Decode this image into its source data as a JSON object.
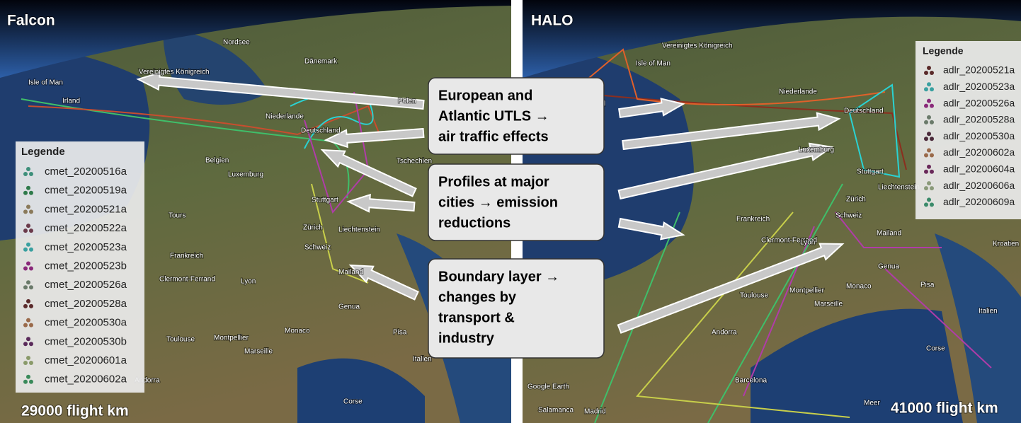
{
  "panels": [
    {
      "title": "Falcon",
      "distance": "29000 flight km",
      "legend": {
        "title": "Legende",
        "items": [
          "cmet_20200516a",
          "cmet_20200519a",
          "cmet_20200521a",
          "cmet_20200522a",
          "cmet_20200523a",
          "cmet_20200523b",
          "cmet_20200526a",
          "cmet_20200528a",
          "cmet_20200530a",
          "cmet_20200530b",
          "cmet_20200601a",
          "cmet_20200602a"
        ]
      },
      "places": [
        "Nordsee",
        "Dänemark",
        "Isle of Man",
        "Vereinigtes Königreich",
        "Irland",
        "Polen",
        "Niederlande",
        "Deutschland",
        "Belgien",
        "Luxemburg",
        "Tschechien",
        "Stuttgart",
        "Tours",
        "Zürich",
        "Liechtenstein",
        "Schweiz",
        "Frankreich",
        "Clermont-Ferrand",
        "Lyon",
        "Mailand",
        "Genua",
        "Monaco",
        "Toulouse",
        "Montpellier",
        "Marseille",
        "Pisa",
        "Italien",
        "Andorra",
        "Corse"
      ]
    },
    {
      "title": "HALO",
      "distance": "41000 flight km",
      "legend": {
        "title": "Legende",
        "items": [
          "adlr_20200521a",
          "adlr_20200523a",
          "adlr_20200526a",
          "adlr_20200528a",
          "adlr_20200530a",
          "adlr_20200602a",
          "adlr_20200604a",
          "adlr_20200606a",
          "adlr_20200609a"
        ]
      },
      "places": [
        "Vereinigtes Königreich",
        "Isle of Man",
        "Irland",
        "Niederlande",
        "Deutschland",
        "Luxemburg",
        "Stuttgart",
        "Liechtenstein",
        "Zürich",
        "Schweiz",
        "Frankreich",
        "Clermont-Ferrand",
        "Lyon",
        "Mailand",
        "Kroatien",
        "Genua",
        "Monaco",
        "Pisa",
        "Montpellier",
        "Toulouse",
        "Marseille",
        "Italien",
        "Andorra",
        "Corse",
        "Barcelona",
        "Google Earth",
        "Salamanca",
        "Madrid",
        "Meer"
      ]
    }
  ],
  "callouts": [
    {
      "lines": [
        "European and",
        "Atlantic UTLS →",
        "air traffic effects"
      ]
    },
    {
      "lines": [
        "Profiles at major",
        "cities → emission",
        "reductions"
      ]
    },
    {
      "lines": [
        "Boundary layer →",
        "changes by",
        "transport &",
        "industry"
      ]
    }
  ]
}
